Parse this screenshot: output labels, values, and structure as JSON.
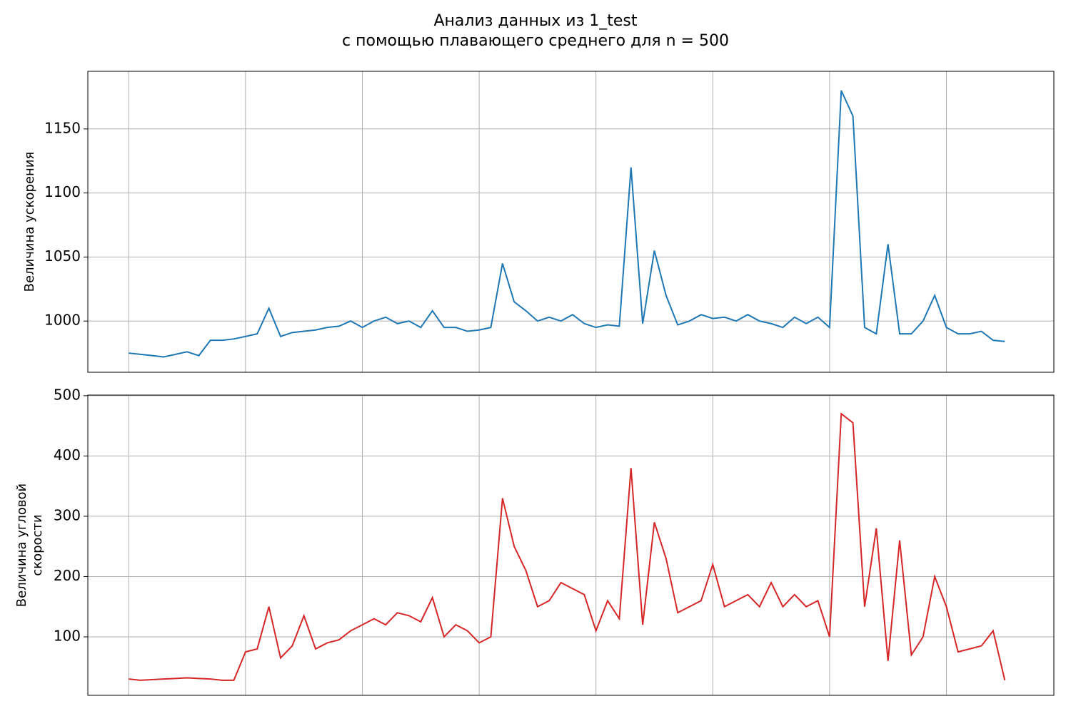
{
  "title": [
    "Анализ данных из 1_test",
    "с помощью плавающего среднего для n = 500"
  ],
  "chart_data": [
    {
      "type": "line",
      "ylabel": [
        "Величина ускорения"
      ],
      "x": [
        0,
        0.1,
        0.2,
        0.3,
        0.4,
        0.5,
        0.6,
        0.7,
        0.8,
        0.9,
        1,
        1.1,
        1.2,
        1.3,
        1.4,
        1.5,
        1.6,
        1.7,
        1.8,
        1.9,
        2,
        2.1,
        2.2,
        2.3,
        2.4,
        2.5,
        2.6,
        2.7,
        2.8,
        2.9,
        3,
        3.1,
        3.2,
        3.3,
        3.4,
        3.5,
        3.6,
        3.7,
        3.8,
        3.9,
        4,
        4.1,
        4.2,
        4.3,
        4.4,
        4.5,
        4.6,
        4.7,
        4.8,
        4.9,
        5,
        5.1,
        5.2,
        5.3,
        5.4,
        5.5,
        5.6,
        5.7,
        5.8,
        5.9,
        6,
        6.1,
        6.2,
        6.3,
        6.4,
        6.5,
        6.6,
        6.7,
        6.8,
        6.9,
        7,
        7.1,
        7.2,
        7.3,
        7.4,
        7.5
      ],
      "series": [
        {
          "color": "#1f77b4",
          "values": [
            975,
            974,
            973,
            972,
            974,
            976,
            973,
            985,
            985,
            986,
            988,
            990,
            1010,
            988,
            991,
            992,
            993,
            995,
            996,
            1000,
            995,
            1000,
            1003,
            998,
            1000,
            995,
            1008,
            995,
            995,
            992,
            993,
            995,
            1045,
            1015,
            1008,
            1000,
            1003,
            1000,
            1005,
            998,
            995,
            997,
            996,
            1120,
            998,
            1055,
            1020,
            997,
            1000,
            1005,
            1002,
            1003,
            1000,
            1005,
            1000,
            998,
            995,
            1003,
            998,
            1003,
            995,
            1180,
            1160,
            995,
            990,
            1060,
            990,
            990,
            1000,
            1020,
            995,
            990,
            990,
            992,
            985,
            984
          ]
        }
      ],
      "xlim": [
        -0.35,
        7.92
      ],
      "xticks": [
        0,
        1,
        2,
        3,
        4,
        5,
        6,
        7
      ],
      "ylim": [
        960,
        1195
      ],
      "yticks": [
        1000,
        1050,
        1100,
        1150
      ],
      "grid": true
    },
    {
      "type": "line",
      "ylabel": [
        "Величина угловой",
        "скорости"
      ],
      "x": [
        0,
        0.1,
        0.2,
        0.3,
        0.4,
        0.5,
        0.6,
        0.7,
        0.8,
        0.9,
        1,
        1.1,
        1.2,
        1.3,
        1.4,
        1.5,
        1.6,
        1.7,
        1.8,
        1.9,
        2,
        2.1,
        2.2,
        2.3,
        2.4,
        2.5,
        2.6,
        2.7,
        2.8,
        2.9,
        3,
        3.1,
        3.2,
        3.3,
        3.4,
        3.5,
        3.6,
        3.7,
        3.8,
        3.9,
        4,
        4.1,
        4.2,
        4.3,
        4.4,
        4.5,
        4.6,
        4.7,
        4.8,
        4.9,
        5,
        5.1,
        5.2,
        5.3,
        5.4,
        5.5,
        5.6,
        5.7,
        5.8,
        5.9,
        6,
        6.1,
        6.2,
        6.3,
        6.4,
        6.5,
        6.6,
        6.7,
        6.8,
        6.9,
        7,
        7.1,
        7.2,
        7.3,
        7.4,
        7.5
      ],
      "series": [
        {
          "color": "#d62728",
          "values": [
            30,
            28,
            29,
            30,
            31,
            32,
            31,
            30,
            28,
            28,
            75,
            80,
            150,
            65,
            85,
            135,
            80,
            90,
            95,
            110,
            120,
            130,
            120,
            140,
            135,
            125,
            165,
            100,
            120,
            110,
            90,
            100,
            330,
            250,
            210,
            150,
            160,
            190,
            180,
            170,
            110,
            160,
            130,
            380,
            120,
            290,
            230,
            140,
            150,
            160,
            220,
            150,
            160,
            170,
            150,
            190,
            150,
            170,
            150,
            160,
            100,
            470,
            455,
            150,
            280,
            60,
            260,
            70,
            100,
            200,
            150,
            75,
            80,
            85,
            110,
            28
          ]
        }
      ],
      "xlim": [
        -0.35,
        7.92
      ],
      "xticks": [
        0,
        1,
        2,
        3,
        4,
        5,
        6,
        7
      ],
      "ylim": [
        3,
        501
      ],
      "yticks": [
        100,
        200,
        300,
        400,
        500
      ],
      "grid": true
    }
  ]
}
